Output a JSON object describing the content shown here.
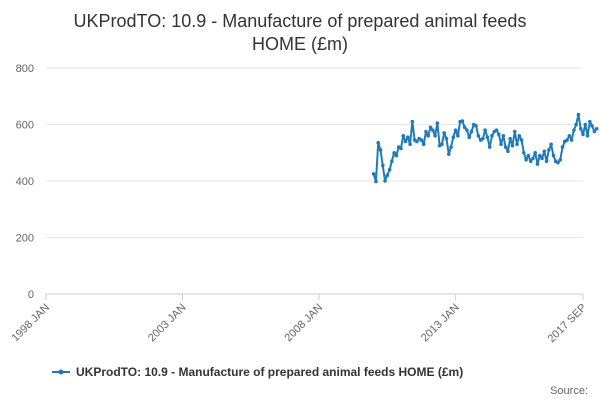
{
  "chart_data": {
    "type": "line",
    "title_lines": [
      "UKProdTO: 10.9 - Manufacture of prepared animal feeds",
      "HOME (£m)"
    ],
    "x_tick_labels": [
      "1998 JAN",
      "2003 JAN",
      "2008 JAN",
      "2013 JAN",
      "2017 SEP"
    ],
    "x_tick_months": [
      0,
      60,
      120,
      180,
      236
    ],
    "x_range_months": [
      0,
      236
    ],
    "x_origin": "1998-01",
    "y_ticks": [
      0,
      200,
      400,
      600,
      800
    ],
    "ylim": [
      0,
      800
    ],
    "grid": true,
    "legend_position": "bottom",
    "series": [
      {
        "name": "UKProdTO: 10.9 - Manufacture of prepared animal feeds HOME (£m)",
        "color": "#1f7ab8",
        "start_month": 144,
        "values": [
          425,
          398,
          535,
          510,
          455,
          400,
          420,
          440,
          470,
          500,
          490,
          520,
          515,
          560,
          540,
          555,
          530,
          610,
          545,
          540,
          550,
          545,
          530,
          575,
          560,
          590,
          580,
          560,
          605,
          525,
          530,
          570,
          550,
          495,
          520,
          555,
          580,
          560,
          610,
          612,
          590,
          580,
          555,
          575,
          600,
          595,
          560,
          545,
          550,
          580,
          555,
          520,
          560,
          575,
          580,
          565,
          530,
          560,
          520,
          505,
          550,
          525,
          575,
          530,
          560,
          545,
          500,
          475,
          490,
          470,
          480,
          500,
          460,
          490,
          480,
          505,
          470,
          510,
          530,
          490,
          470,
          465,
          475,
          520,
          540,
          545,
          560,
          545,
          580,
          600,
          635,
          585,
          565,
          600,
          560,
          610,
          595,
          575,
          585
        ]
      }
    ],
    "source_label": "Source:"
  }
}
